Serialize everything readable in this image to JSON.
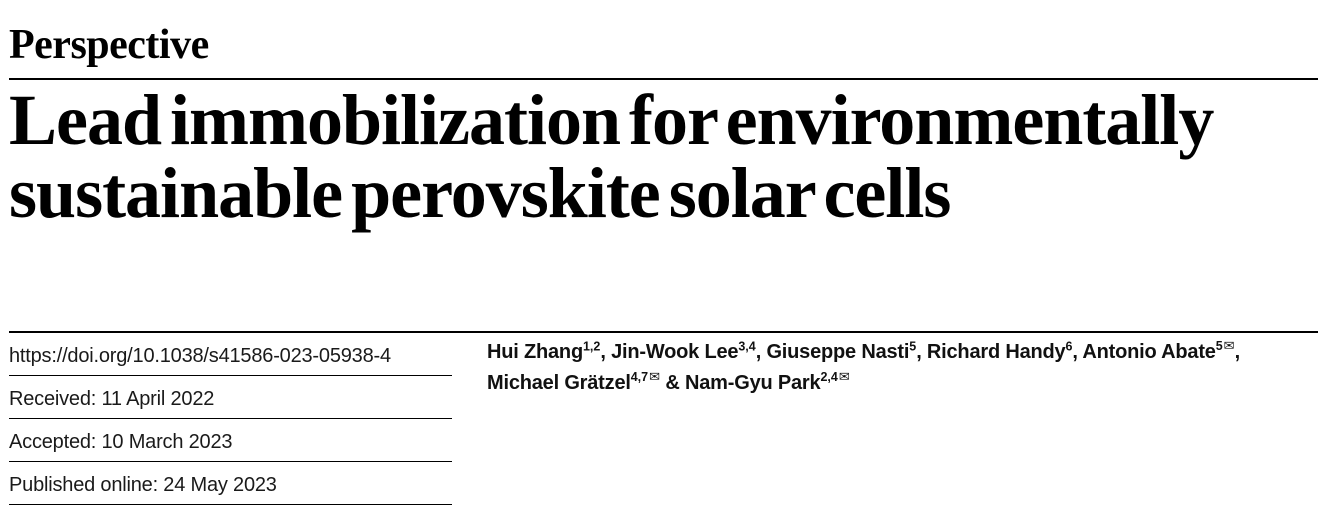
{
  "page": {
    "background_color": "#ffffff",
    "title_color": "#000000",
    "body_text_color": "#1a1a1a",
    "rule_color": "#000000"
  },
  "header": {
    "article_type": "Perspective",
    "title_lines": [
      "Lead immobilization for environmentally",
      "sustainable perovskite solar cells"
    ]
  },
  "metadata": {
    "doi": "https://doi.org/10.1038/s41586-023-05938-4",
    "received": "Received: 11 April 2022",
    "accepted": "Accepted: 10 March 2023",
    "published_online": "Published online: 24 May 2023"
  },
  "authors": {
    "envelope_icon": "✉",
    "lines": [
      [
        {
          "name": "Hui Zhang",
          "sup": "1,2",
          "sep": ", "
        },
        {
          "name": "Jin-Wook Lee",
          "sup": "3,4",
          "sep": ", "
        },
        {
          "name": "Giuseppe Nasti",
          "sup": "5",
          "sep": ", "
        },
        {
          "name": "Richard Handy",
          "sup": "6",
          "sep": ", "
        },
        {
          "name": "Antonio Abate",
          "sup": "5",
          "corresponding": true,
          "sep": ","
        }
      ],
      [
        {
          "name": "Michael Grätzel",
          "sup": "4,7",
          "corresponding": true,
          "sep": " & "
        },
        {
          "name": "Nam-Gyu Park",
          "sup": "2,4",
          "corresponding": true,
          "sep": ""
        }
      ]
    ]
  }
}
